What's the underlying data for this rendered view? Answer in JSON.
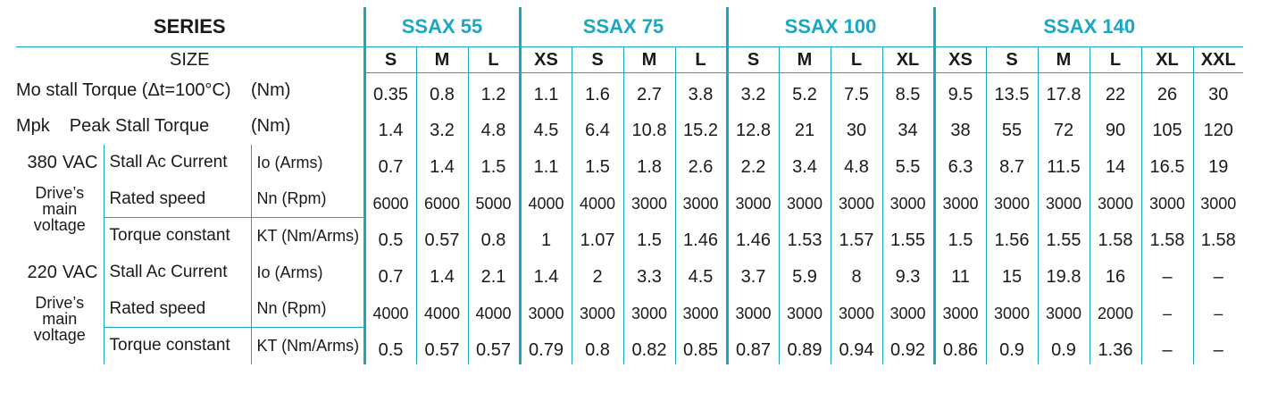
{
  "header": {
    "series_label": "SERIES",
    "size_label": "SIZE",
    "series": [
      {
        "name": "SSAX 55",
        "sizes": [
          "S",
          "M",
          "L"
        ]
      },
      {
        "name": "SSAX 75",
        "sizes": [
          "XS",
          "S",
          "M",
          "L"
        ]
      },
      {
        "name": "SSAX 100",
        "sizes": [
          "S",
          "M",
          "L",
          "XL"
        ]
      },
      {
        "name": "SSAX 140",
        "sizes": [
          "XS",
          "S",
          "M",
          "L",
          "XL",
          "XXL"
        ]
      }
    ]
  },
  "rows": {
    "mo_label": "Mo stall Torque (Δt=100°C)",
    "mo_unit": "(Nm)",
    "mo_values": [
      "0.35",
      "0.8",
      "1.2",
      "1.1",
      "1.6",
      "2.7",
      "3.8",
      "3.2",
      "5.2",
      "7.5",
      "8.5",
      "9.5",
      "13.5",
      "17.8",
      "22",
      "26",
      "30"
    ],
    "mpk_label": "Mpk",
    "mpk_desc": "Peak Stall Torque",
    "mpk_unit": "(Nm)",
    "mpk_values": [
      "1.4",
      "3.2",
      "4.8",
      "4.5",
      "6.4",
      "10.8",
      "15.2",
      "12.8",
      "21",
      "30",
      "34",
      "38",
      "55",
      "72",
      "90",
      "105",
      "120"
    ]
  },
  "v380": {
    "voltage": "380",
    "voltage_suffix": "VAC",
    "drive_label_1": "Drive’s",
    "drive_label_2": "main",
    "drive_label_3": "voltage",
    "current_label": "Stall Ac Current",
    "current_unit": "Io (Arms)",
    "current_values": [
      "0.7",
      "1.4",
      "1.5",
      "1.1",
      "1.5",
      "1.8",
      "2.6",
      "2.2",
      "3.4",
      "4.8",
      "5.5",
      "6.3",
      "8.7",
      "11.5",
      "14",
      "16.5",
      "19"
    ],
    "speed_label": "Rated speed",
    "speed_unit": "Nn (Rpm)",
    "speed_values": [
      "6000",
      "6000",
      "5000",
      "4000",
      "4000",
      "3000",
      "3000",
      "3000",
      "3000",
      "3000",
      "3000",
      "3000",
      "3000",
      "3000",
      "3000",
      "3000",
      "3000"
    ],
    "torque_label": "Torque constant",
    "torque_unit": "KT (Nm/Arms)",
    "torque_values": [
      "0.5",
      "0.57",
      "0.8",
      "1",
      "1.07",
      "1.5",
      "1.46",
      "1.46",
      "1.53",
      "1.57",
      "1.55",
      "1.5",
      "1.56",
      "1.55",
      "1.58",
      "1.58",
      "1.58"
    ]
  },
  "v220": {
    "voltage": "220",
    "voltage_suffix": "VAC",
    "drive_label_1": "Drive’s",
    "drive_label_2": "main",
    "drive_label_3": "voltage",
    "current_label": "Stall Ac Current",
    "current_unit": "Io (Arms)",
    "current_values": [
      "0.7",
      "1.4",
      "2.1",
      "1.4",
      "2",
      "3.3",
      "4.5",
      "3.7",
      "5.9",
      "8",
      "9.3",
      "11",
      "15",
      "19.8",
      "16",
      "–",
      "–"
    ],
    "speed_label": "Rated speed",
    "speed_unit": "Nn (Rpm)",
    "speed_values": [
      "4000",
      "4000",
      "4000",
      "3000",
      "3000",
      "3000",
      "3000",
      "3000",
      "3000",
      "3000",
      "3000",
      "3000",
      "3000",
      "3000",
      "2000",
      "–",
      "–"
    ],
    "torque_label": "Torque constant",
    "torque_unit": "KT (Nm/Arms)",
    "torque_values": [
      "0.5",
      "0.57",
      "0.57",
      "0.79",
      "0.8",
      "0.82",
      "0.85",
      "0.87",
      "0.89",
      "0.94",
      "0.92",
      "0.86",
      "0.9",
      "0.9",
      "1.36",
      "–",
      "–"
    ]
  },
  "colors": {
    "accent": "#1aa7c4",
    "text": "#1a1a1a"
  }
}
